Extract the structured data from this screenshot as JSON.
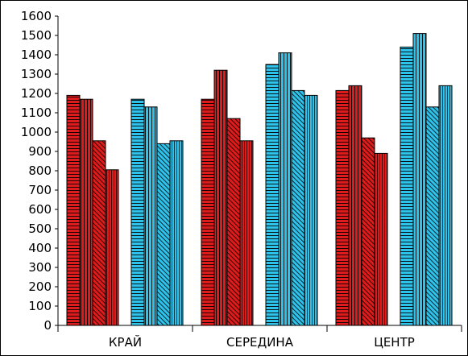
{
  "chart_data": {
    "type": "bar",
    "categories": [
      "КРАЙ",
      "СЕРЕДИНА",
      "ЦЕНТР"
    ],
    "ylim": [
      0,
      1600
    ],
    "ytick_step": 100,
    "grid": false,
    "groups": [
      {
        "color": "#e01b1b",
        "series": [
          {
            "pattern": "horizontal-lines",
            "values": [
              1190,
              1170,
              1215
            ]
          },
          {
            "pattern": "vertical-lines",
            "values": [
              1170,
              1320,
              1240
            ]
          },
          {
            "pattern": "diagonal-lines",
            "values": [
              955,
              1070,
              970
            ]
          },
          {
            "pattern": "fine-vertical-lines",
            "values": [
              805,
              955,
              890
            ]
          }
        ]
      },
      {
        "color": "#2fc3ec",
        "series": [
          {
            "pattern": "horizontal-lines",
            "values": [
              1170,
              1350,
              1440
            ]
          },
          {
            "pattern": "vertical-lines",
            "values": [
              1130,
              1410,
              1510
            ]
          },
          {
            "pattern": "diagonal-lines",
            "values": [
              940,
              1215,
              1130
            ]
          },
          {
            "pattern": "fine-vertical-lines",
            "values": [
              955,
              1190,
              1240
            ]
          }
        ]
      }
    ]
  }
}
